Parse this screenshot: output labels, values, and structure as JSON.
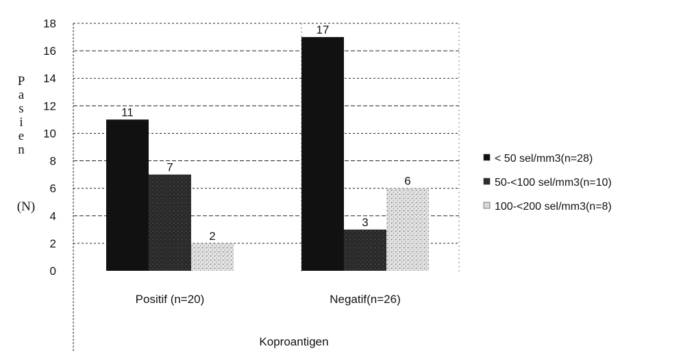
{
  "chart_data": {
    "type": "bar",
    "categories": [
      "Positif (n=20)",
      "Negatif(n=26)"
    ],
    "series": [
      {
        "name": "< 50 sel/mm3(n=28)",
        "values": [
          11,
          17
        ],
        "color": "#111111"
      },
      {
        "name": "50-<100 sel/mm3(n=10)",
        "values": [
          7,
          3
        ],
        "color": "#2e2e2e"
      },
      {
        "name": "100-<200 sel/mm3(n=8)",
        "values": [
          2,
          6
        ],
        "color": "#d8d8d8"
      }
    ],
    "ylabel_lines": [
      "P",
      "a",
      "s",
      "i",
      "e",
      "n"
    ],
    "ylabel_unit": "(N)",
    "xlabel": "Koproantigen",
    "ylim": [
      0,
      18
    ],
    "yticks": [
      "0",
      "2",
      "4",
      "6",
      "8",
      "10",
      "12",
      "14",
      "16",
      "18"
    ],
    "grid": true,
    "legend_position": "right"
  }
}
